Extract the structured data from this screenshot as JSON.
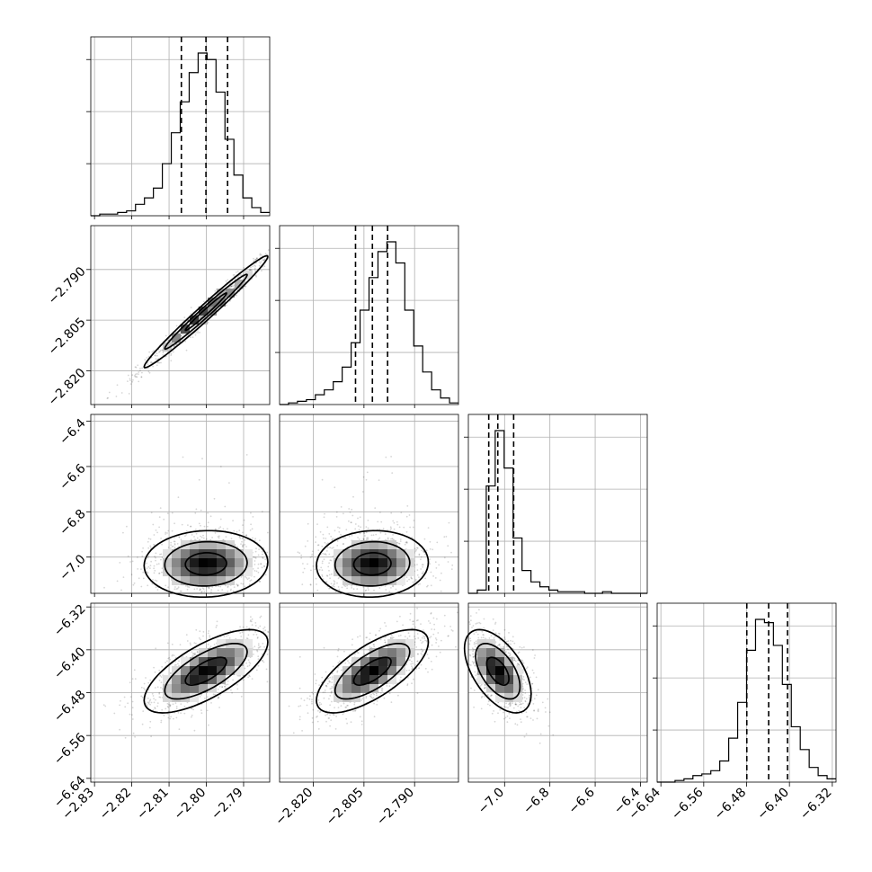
{
  "chart_data": {
    "type": "corner",
    "grid": true,
    "parameters": [
      {
        "ticks_x": [
          "−2.83",
          "−2.82",
          "−2.81",
          "−2.80",
          "−2.79"
        ],
        "ticks_x_vals": [
          -2.83,
          -2.82,
          -2.81,
          -2.8,
          -2.79
        ],
        "range": [
          -2.831,
          -2.783
        ],
        "quantiles": [
          -2.8067,
          -2.8001,
          -2.7943
        ],
        "hist": [
          0,
          1,
          1,
          2,
          3,
          7,
          11,
          17,
          32,
          51,
          70,
          88,
          100,
          96,
          76,
          47,
          25,
          11,
          5,
          2
        ]
      },
      {
        "ticks": [
          "−2.820",
          "−2.805",
          "−2.790"
        ],
        "ticks_vals": [
          -2.82,
          -2.805,
          -2.79
        ],
        "range": [
          -2.83,
          -2.777
        ],
        "quantiles": [
          -2.8075,
          -2.8025,
          -2.798
        ],
        "hist": [
          0,
          1,
          2,
          3,
          6,
          9,
          14,
          23,
          38,
          58,
          78,
          94,
          100,
          87,
          58,
          36,
          20,
          9,
          4,
          1
        ]
      },
      {
        "ticks": [
          "−7.0",
          "−6.8",
          "−6.6",
          "−6.4"
        ],
        "ticks_vals": [
          -7.0,
          -6.8,
          -6.6,
          -6.4
        ],
        "range": [
          -7.16,
          -6.37
        ],
        "quantiles": [
          -7.07,
          -7.03,
          -6.96
        ],
        "hist": [
          0,
          2,
          66,
          100,
          77,
          34,
          14,
          7,
          4,
          2,
          1,
          1,
          1,
          0,
          0,
          1,
          0,
          0,
          0,
          0
        ]
      },
      {
        "ticks": [
          "−6.64",
          "−6.56",
          "−6.48",
          "−6.40",
          "−6.32"
        ],
        "ticks_vals": [
          -6.64,
          -6.56,
          -6.48,
          -6.4,
          -6.32
        ],
        "range": [
          -6.647,
          -6.313
        ],
        "quantiles": [
          -6.4796,
          -6.4388,
          -6.4036
        ],
        "hist": [
          0,
          0,
          1,
          2,
          4,
          5,
          7,
          13,
          27,
          49,
          81,
          100,
          98,
          84,
          60,
          34,
          20,
          9,
          4,
          2
        ]
      }
    ],
    "pairs": [
      {
        "row": 1,
        "col": 0,
        "mean": [
          -2.8001,
          -2.8025
        ],
        "sd": [
          0.0079,
          0.0079
        ],
        "rho": 0.985
      },
      {
        "row": 2,
        "col": 0,
        "mean": [
          -2.8001,
          -7.03
        ],
        "sd": [
          0.0079,
          0.07
        ],
        "rho": 0.05
      },
      {
        "row": 2,
        "col": 1,
        "mean": [
          -2.8025,
          -7.03
        ],
        "sd": [
          0.0079,
          0.07
        ],
        "rho": 0.05
      },
      {
        "row": 3,
        "col": 0,
        "mean": [
          -2.8001,
          -6.44
        ],
        "sd": [
          0.0079,
          0.037
        ],
        "rho": 0.7
      },
      {
        "row": 3,
        "col": 1,
        "mean": [
          -2.8025,
          -6.44
        ],
        "sd": [
          0.0079,
          0.037
        ],
        "rho": 0.7
      },
      {
        "row": 3,
        "col": 2,
        "mean": [
          -7.03,
          -6.44
        ],
        "sd": [
          0.07,
          0.037
        ],
        "rho": -0.55
      }
    ]
  }
}
